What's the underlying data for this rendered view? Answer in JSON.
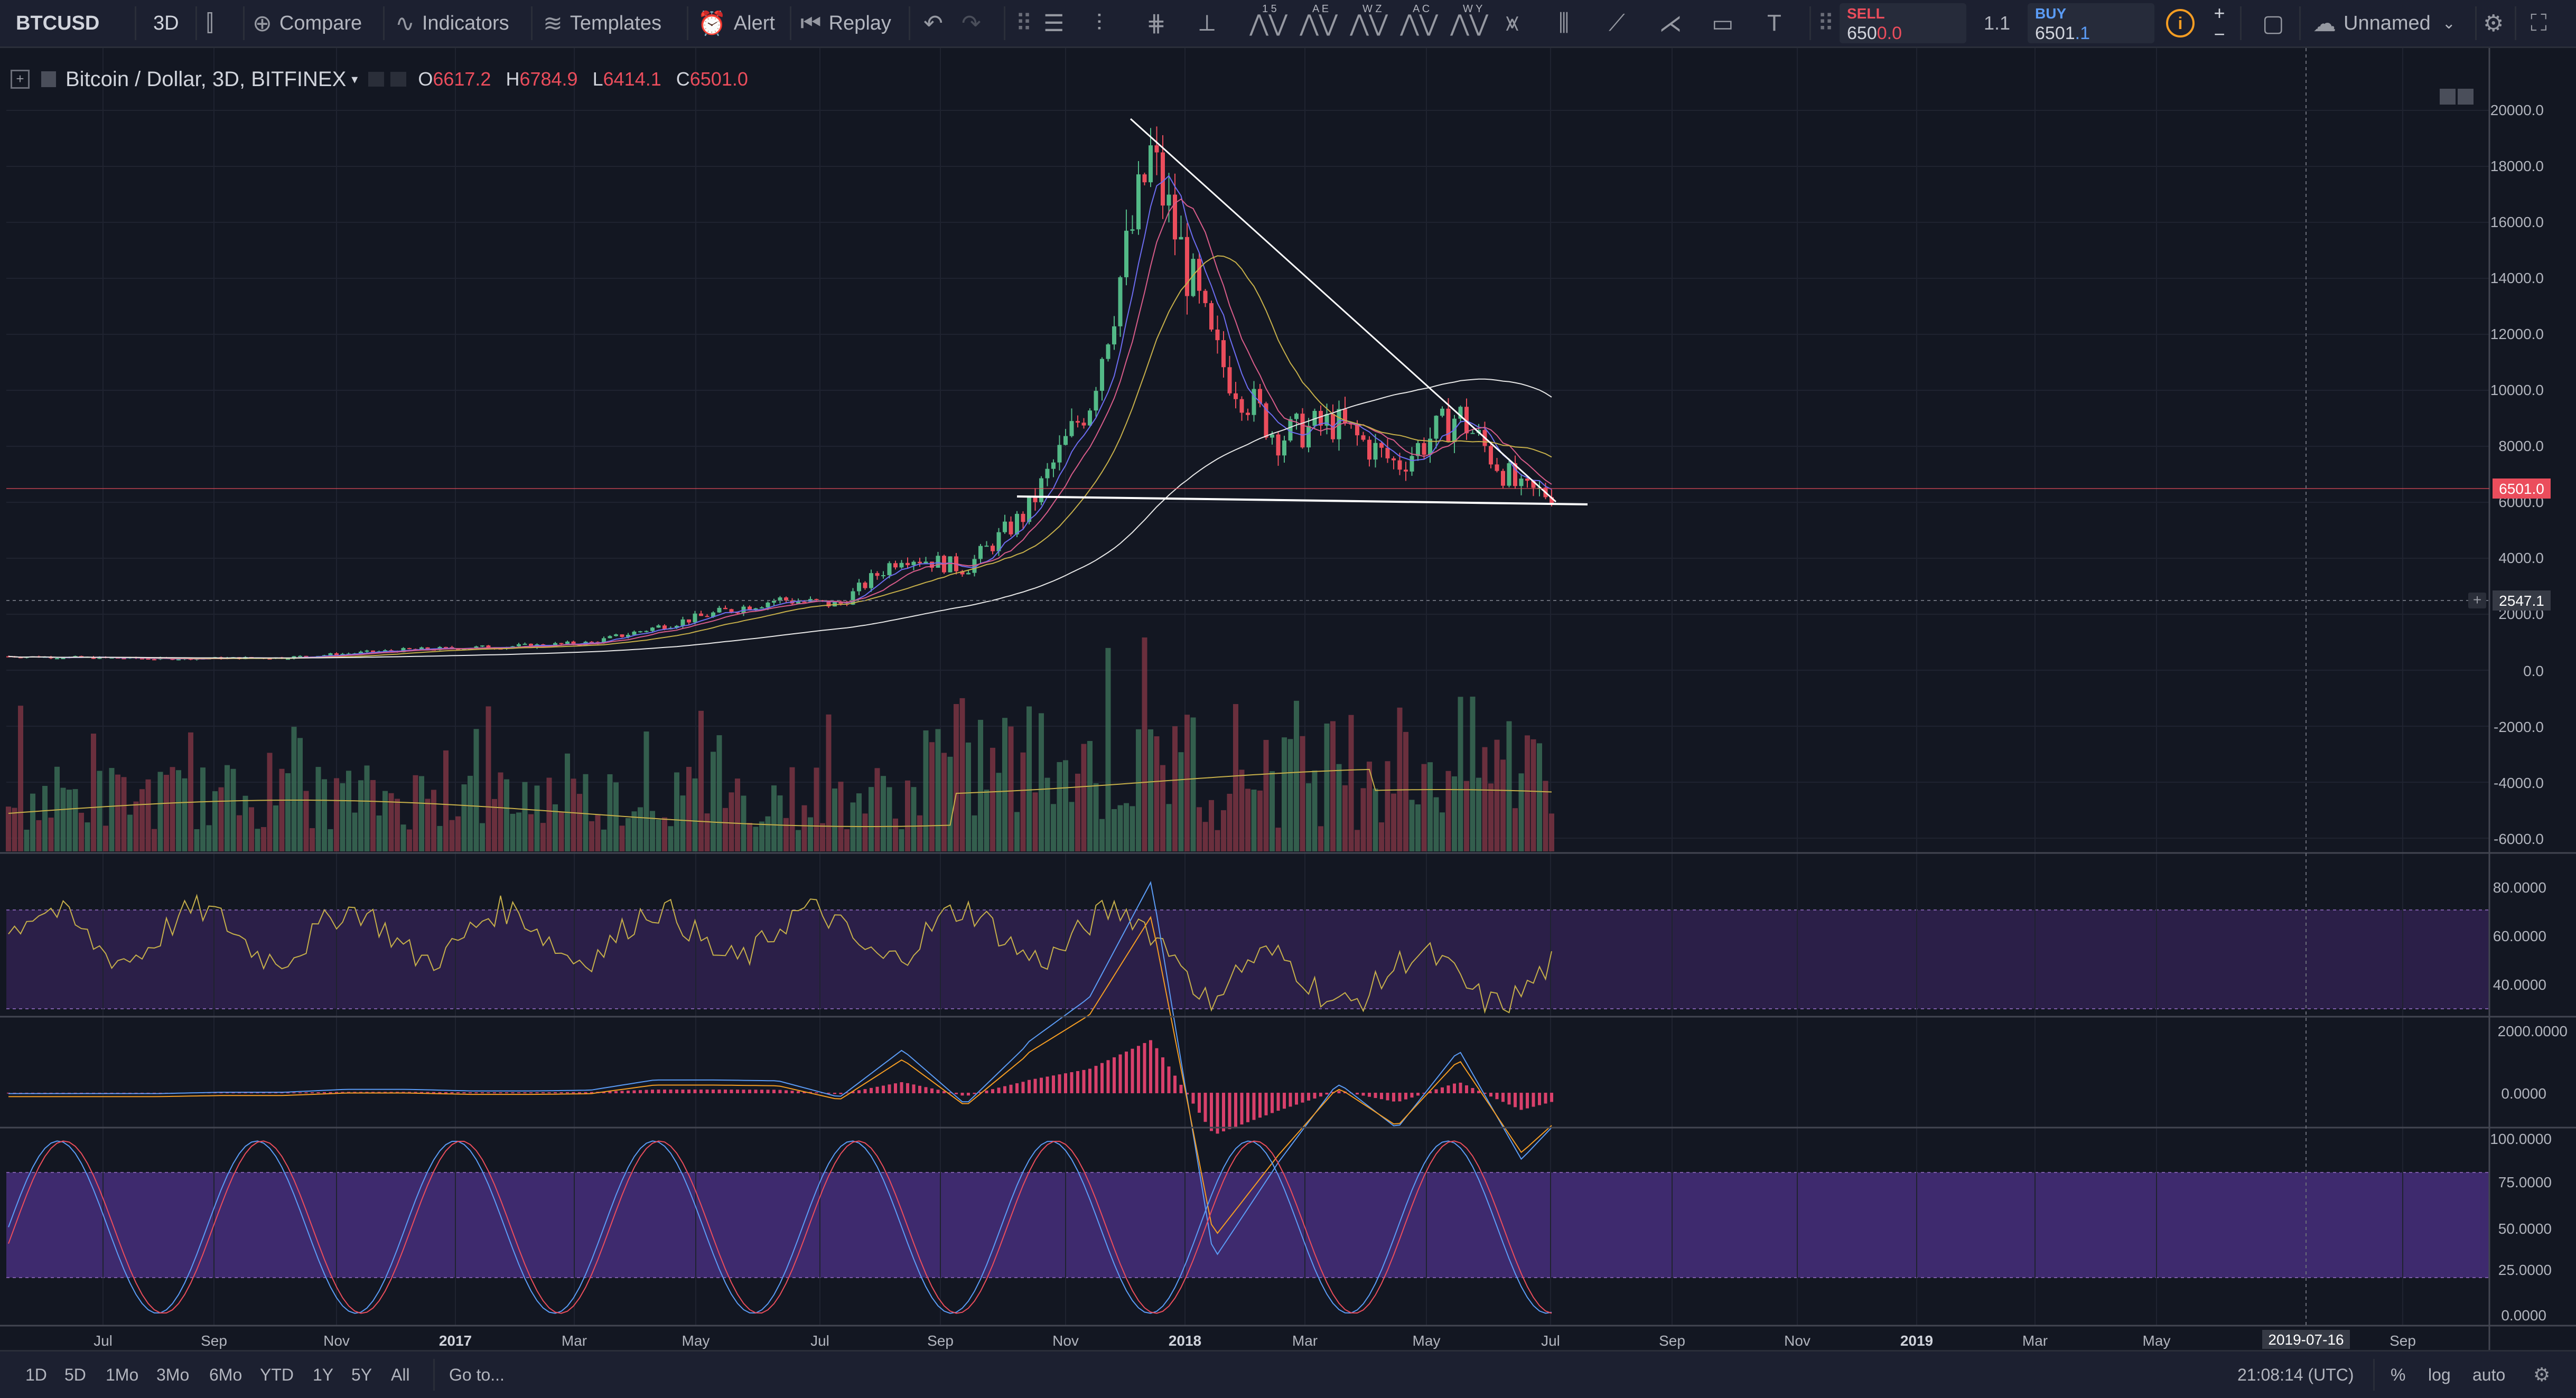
{
  "toolbar": {
    "symbol": "BTCUSD",
    "interval": "3D",
    "compare": "Compare",
    "indicators": "Indicators",
    "templates": "Templates",
    "alert": "Alert",
    "replay": "Replay",
    "layout_name": "Unnamed",
    "trade": {
      "sell_label": "SELL",
      "sell_price_main": "650",
      "sell_price_tail": "0.0",
      "spread": "1.1",
      "buy_label": "BUY",
      "buy_price_main": "6501",
      "buy_price_tail": ".1"
    },
    "pattern_tool_labels": [
      "1 5",
      "A E",
      "W Z",
      "A C",
      "W Y"
    ]
  },
  "legend": {
    "title": "Bitcoin / Dollar, 3D, BITFINEX",
    "open_label": "O",
    "open": "6617.2",
    "high_label": "H",
    "high": "6784.9",
    "low_label": "L",
    "low": "6414.1",
    "close_label": "C",
    "close": "6501.0"
  },
  "price_axis": {
    "ticks": [
      "20000.0",
      "18000.0",
      "16000.0",
      "14000.0",
      "12000.0",
      "10000.0",
      "8000.0",
      "6000.0",
      "4000.0",
      "2000.0",
      "0.0",
      "-2000.0",
      "-4000.0",
      "-6000.0"
    ],
    "last_price": "6501.0",
    "cursor_price": "2547.1"
  },
  "rsi_axis": {
    "ticks": [
      "80.0000",
      "60.0000",
      "40.0000"
    ]
  },
  "macd_axis": {
    "ticks": [
      "2000.0000",
      "0.0000"
    ]
  },
  "stoch_axis": {
    "ticks": [
      "100.0000",
      "75.0000",
      "50.0000",
      "25.0000",
      "0.0000"
    ]
  },
  "time_axis": {
    "labels": [
      "Jul",
      "Sep",
      "Nov",
      "2017",
      "Mar",
      "May",
      "Jul",
      "Sep",
      "Nov",
      "2018",
      "Mar",
      "May",
      "Jul",
      "Sep",
      "Nov",
      "2019",
      "Mar",
      "May",
      "Sep"
    ],
    "cursor_date": "2019-07-16"
  },
  "bottom_bar": {
    "ranges": [
      "1D",
      "5D",
      "1Mo",
      "3Mo",
      "6Mo",
      "YTD",
      "1Y",
      "5Y",
      "All"
    ],
    "goto": "Go to...",
    "clock": "21:08:14 (UTC)",
    "percent": "%",
    "log": "log",
    "auto": "auto"
  },
  "chart_data": {
    "type": "candlestick",
    "title": "Bitcoin / Dollar, 3D, BITFINEX",
    "x_range": [
      "2016-06",
      "2019-10"
    ],
    "y_range": [
      -6000,
      21000
    ],
    "price_series_approx": [
      {
        "date": "2016-06",
        "price": 650
      },
      {
        "date": "2016-08",
        "price": 580
      },
      {
        "date": "2016-10",
        "price": 620
      },
      {
        "date": "2016-12",
        "price": 900
      },
      {
        "date": "2017-02",
        "price": 1050
      },
      {
        "date": "2017-03",
        "price": 1150
      },
      {
        "date": "2017-05",
        "price": 2200
      },
      {
        "date": "2017-06",
        "price": 2700
      },
      {
        "date": "2017-07",
        "price": 2500
      },
      {
        "date": "2017-08",
        "price": 4300
      },
      {
        "date": "2017-09",
        "price": 3800
      },
      {
        "date": "2017-10",
        "price": 5800
      },
      {
        "date": "2017-11",
        "price": 9800
      },
      {
        "date": "2017-12",
        "price": 18500
      },
      {
        "date": "2018-01",
        "price": 11500
      },
      {
        "date": "2018-02",
        "price": 8500
      },
      {
        "date": "2018-03",
        "price": 9000
      },
      {
        "date": "2018-04",
        "price": 7500
      },
      {
        "date": "2018-05",
        "price": 9300
      },
      {
        "date": "2018-06",
        "price": 6500
      },
      {
        "date": "2018-07",
        "price": 6501
      }
    ],
    "trendlines": [
      {
        "name": "descending resistance",
        "from": {
          "date": "2017-12",
          "price": 19800
        },
        "to": {
          "date": "2018-07",
          "price": 6100
        }
      },
      {
        "name": "horizontal support",
        "from": {
          "date": "2017-10",
          "price": 6000
        },
        "to": {
          "date": "2018-07",
          "price": 5900
        }
      }
    ],
    "rsi_band": [
      30,
      70
    ],
    "stoch_band": [
      20,
      80
    ]
  },
  "colors": {
    "background": "#131722",
    "up": "#53b987",
    "down": "#eb4d5c",
    "rsi_band": "#2b1f48",
    "stoch_band": "#3e2a6e",
    "last_price_tag": "#eb4d5c",
    "alert_accent": "#f59d23"
  }
}
